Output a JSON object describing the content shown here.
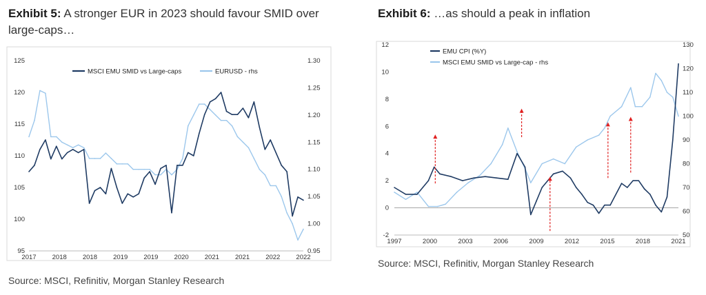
{
  "exhibit5": {
    "label": "Exhibit 5:",
    "title_text": "A stronger EUR in 2023 should favour SMID over large-caps…",
    "source": "Source: MSCI, Refinitiv, Morgan Stanley Research"
  },
  "exhibit6": {
    "label": "Exhibit 6:",
    "title_text": "…as should a peak in inflation",
    "source": "Source: MSCI, Refinitiv, Morgan Stanley Research"
  },
  "colors": {
    "dark_series": "#1f3b63",
    "light_series": "#9cc7ec",
    "arrow": "#e02020"
  },
  "chart_data": [
    {
      "type": "line",
      "id": "exhibit5",
      "x_tick_labels": [
        "2017",
        "2018",
        "2018",
        "2019",
        "2019",
        "2020",
        "2021",
        "2021",
        "2022",
        "2022"
      ],
      "xlim": [
        2017.0,
        2022.0
      ],
      "ylim_left": [
        95,
        125
      ],
      "yticks_left": [
        "95",
        "100",
        "105",
        "110",
        "115",
        "120",
        "125"
      ],
      "ylim_right": [
        0.95,
        1.3
      ],
      "yticks_right": [
        "0.95",
        "1.00",
        "1.05",
        "1.10",
        "1.15",
        "1.20",
        "1.25",
        "1.30"
      ],
      "series": [
        {
          "name": "MSCI EMU SMID vs Large-caps",
          "axis": "left",
          "color": "#1f3b63",
          "x": [
            2017.0,
            2017.1,
            2017.2,
            2017.3,
            2017.4,
            2017.5,
            2017.6,
            2017.7,
            2017.8,
            2017.9,
            2018.0,
            2018.1,
            2018.2,
            2018.3,
            2018.4,
            2018.5,
            2018.6,
            2018.7,
            2018.8,
            2018.9,
            2019.0,
            2019.1,
            2019.2,
            2019.3,
            2019.4,
            2019.5,
            2019.6,
            2019.7,
            2019.8,
            2019.9,
            2020.0,
            2020.1,
            2020.2,
            2020.3,
            2020.4,
            2020.5,
            2020.6,
            2020.7,
            2020.8,
            2020.9,
            2021.0,
            2021.1,
            2021.2,
            2021.3,
            2021.4,
            2021.5,
            2021.6,
            2021.7,
            2021.8,
            2021.9,
            2022.0
          ],
          "values": [
            107.5,
            108.5,
            111.0,
            112.5,
            109.5,
            111.5,
            109.5,
            110.5,
            111.0,
            110.5,
            111.0,
            102.5,
            104.5,
            105.0,
            104.0,
            108.0,
            105.0,
            102.5,
            104.0,
            103.5,
            104.0,
            106.5,
            107.5,
            105.5,
            108.0,
            108.5,
            101.0,
            108.5,
            108.5,
            110.5,
            110.0,
            113.5,
            116.5,
            118.5,
            119.0,
            120.0,
            117.0,
            116.5,
            116.5,
            117.5,
            116.0,
            118.5,
            114.5,
            111.0,
            112.5,
            110.5,
            108.5,
            107.5,
            100.5,
            103.5,
            103.0
          ]
        },
        {
          "name": "EURUSD - rhs",
          "axis": "right",
          "color": "#9cc7ec",
          "x": [
            2017.0,
            2017.1,
            2017.2,
            2017.3,
            2017.4,
            2017.5,
            2017.6,
            2017.7,
            2017.8,
            2017.9,
            2018.0,
            2018.1,
            2018.2,
            2018.3,
            2018.4,
            2018.5,
            2018.6,
            2018.7,
            2018.8,
            2018.9,
            2019.0,
            2019.1,
            2019.2,
            2019.3,
            2019.4,
            2019.5,
            2019.6,
            2019.7,
            2019.8,
            2019.9,
            2020.0,
            2020.1,
            2020.2,
            2020.3,
            2020.4,
            2020.5,
            2020.6,
            2020.7,
            2020.8,
            2020.9,
            2021.0,
            2021.1,
            2021.2,
            2021.3,
            2021.4,
            2021.5,
            2021.6,
            2021.7,
            2021.8,
            2021.9,
            2022.0
          ],
          "values": [
            1.16,
            1.19,
            1.245,
            1.24,
            1.16,
            1.16,
            1.15,
            1.145,
            1.14,
            1.145,
            1.14,
            1.12,
            1.12,
            1.12,
            1.13,
            1.12,
            1.11,
            1.11,
            1.11,
            1.1,
            1.1,
            1.1,
            1.1,
            1.09,
            1.09,
            1.1,
            1.09,
            1.1,
            1.12,
            1.18,
            1.2,
            1.22,
            1.22,
            1.21,
            1.2,
            1.19,
            1.19,
            1.18,
            1.16,
            1.15,
            1.14,
            1.12,
            1.1,
            1.09,
            1.07,
            1.07,
            1.05,
            1.02,
            1.0,
            0.97,
            0.99
          ]
        }
      ]
    },
    {
      "type": "line",
      "id": "exhibit6",
      "x_tick_labels": [
        "1997",
        "2000",
        "2003",
        "2006",
        "2009",
        "2012",
        "2015",
        "2018",
        "2021"
      ],
      "xlim": [
        1997.0,
        2022.0
      ],
      "ylim_left": [
        -2,
        12
      ],
      "yticks_left": [
        "-2",
        "0",
        "2",
        "4",
        "6",
        "8",
        "10",
        "12"
      ],
      "ylim_right": [
        50,
        130
      ],
      "yticks_right": [
        "50",
        "60",
        "70",
        "80",
        "90",
        "100",
        "110",
        "120",
        "130"
      ],
      "series": [
        {
          "name": "EMU CPI (%Y)",
          "axis": "left",
          "color": "#1f3b63",
          "x": [
            1997.0,
            1998.0,
            1999.0,
            2000.0,
            2000.5,
            2001.0,
            2002.0,
            2003.0,
            2004.0,
            2005.0,
            2006.0,
            2007.0,
            2007.8,
            2008.5,
            2009.0,
            2009.5,
            2010.0,
            2011.0,
            2011.8,
            2012.5,
            2013.0,
            2013.5,
            2014.0,
            2014.5,
            2015.0,
            2015.5,
            2016.0,
            2017.0,
            2017.5,
            2018.0,
            2018.5,
            2019.0,
            2019.5,
            2020.0,
            2020.5,
            2021.0,
            2021.5,
            2022.0
          ],
          "values": [
            1.5,
            1.0,
            1.0,
            2.0,
            3.0,
            2.5,
            2.3,
            2.0,
            2.2,
            2.3,
            2.2,
            2.1,
            4.0,
            3.0,
            -0.5,
            0.5,
            1.5,
            2.5,
            2.7,
            2.2,
            1.5,
            1.0,
            0.4,
            0.2,
            -0.4,
            0.2,
            0.2,
            1.8,
            1.5,
            2.0,
            2.0,
            1.4,
            1.0,
            0.2,
            -0.3,
            0.8,
            5.0,
            10.6
          ]
        },
        {
          "name": "MSCI EMU SMID vs Large-cap - rhs",
          "axis": "right",
          "color": "#9cc7ec",
          "x": [
            1997.0,
            1998.0,
            1999.0,
            2000.0,
            2000.8,
            2001.5,
            2002.5,
            2003.5,
            2004.5,
            2005.5,
            2006.5,
            2007.0,
            2007.8,
            2008.5,
            2009.0,
            2010.0,
            2011.0,
            2012.0,
            2013.0,
            2014.0,
            2015.0,
            2015.5,
            2016.0,
            2017.0,
            2017.8,
            2018.2,
            2018.8,
            2019.5,
            2020.0,
            2020.5,
            2021.0,
            2021.5,
            2022.0
          ],
          "values": [
            68,
            65,
            68,
            62,
            62,
            63,
            68,
            72,
            75,
            80,
            88,
            95,
            85,
            78,
            72,
            80,
            82,
            80,
            87,
            90,
            92,
            95,
            100,
            104,
            112,
            104,
            104,
            108,
            118,
            115,
            110,
            108,
            100
          ]
        }
      ]
    }
  ]
}
